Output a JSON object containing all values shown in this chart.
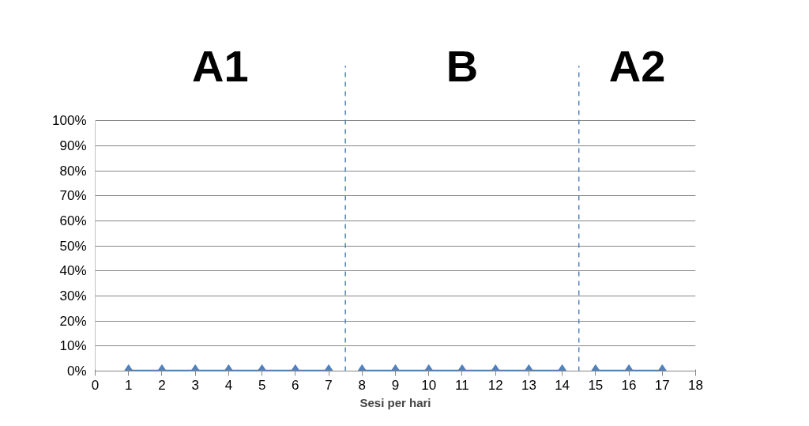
{
  "chart_data": {
    "type": "line",
    "xlabel": "Sesi per hari",
    "series": [
      {
        "color": "#4f81bd",
        "x": [
          1,
          2,
          3,
          4,
          5,
          6,
          7
        ],
        "values": [
          0,
          0,
          0,
          0,
          0,
          0,
          0
        ]
      },
      {
        "color": "#4f81bd",
        "x": [
          8,
          9,
          10,
          11,
          12,
          13,
          14
        ],
        "values": [
          0,
          0,
          0,
          0,
          0,
          0,
          0
        ]
      },
      {
        "color": "#4f81bd",
        "x": [
          15,
          16,
          17
        ],
        "values": [
          0,
          0,
          0
        ]
      }
    ],
    "xlim": [
      0,
      18
    ],
    "xticks": [
      0,
      1,
      2,
      3,
      4,
      5,
      6,
      7,
      8,
      9,
      10,
      11,
      12,
      13,
      14,
      15,
      16,
      17,
      18
    ],
    "ylim": [
      0,
      100
    ],
    "yticks": [
      {
        "value": 0,
        "label": "0%"
      },
      {
        "value": 10,
        "label": "10%"
      },
      {
        "value": 20,
        "label": "20%"
      },
      {
        "value": 30,
        "label": "30%"
      },
      {
        "value": 40,
        "label": "40%"
      },
      {
        "value": 50,
        "label": "50%"
      },
      {
        "value": 60,
        "label": "60%"
      },
      {
        "value": 70,
        "label": "70%"
      },
      {
        "value": 80,
        "label": "80%"
      },
      {
        "value": 90,
        "label": "90%"
      },
      {
        "value": 100,
        "label": "100%"
      }
    ],
    "ref_lines": [
      {
        "axis": "x",
        "value": 7.5,
        "color": "#4f81bd",
        "line_style": "dashed"
      },
      {
        "axis": "x",
        "value": 14.5,
        "color": "#4f81bd",
        "line_style": "dashed"
      }
    ],
    "annotations": [
      "A1",
      "B",
      "A2"
    ],
    "grid": "y",
    "marker": "diamond",
    "line_style": "solid"
  }
}
